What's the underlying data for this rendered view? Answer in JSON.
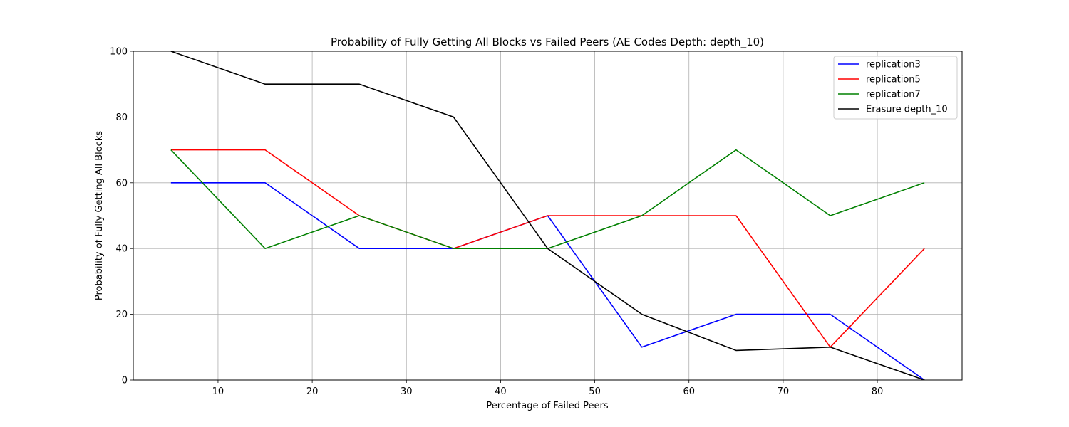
{
  "chart_data": {
    "type": "line",
    "title": "Probability of Fully Getting All Blocks vs Failed Peers (AE Codes Depth: depth_10)",
    "xlabel": "Percentage of Failed Peers",
    "ylabel": "Probability of Fully Getting All Blocks",
    "xlim": [
      1,
      89
    ],
    "ylim": [
      0,
      100
    ],
    "xticks": [
      10,
      20,
      30,
      40,
      50,
      60,
      70,
      80
    ],
    "yticks": [
      0,
      20,
      40,
      60,
      80,
      100
    ],
    "grid": true,
    "legend_position": "top-right",
    "x": [
      5,
      15,
      25,
      35,
      45,
      55,
      65,
      75,
      85
    ],
    "series": [
      {
        "name": "replication3",
        "color": "#0000ff",
        "values": [
          60,
          60,
          40,
          40,
          50,
          10,
          20,
          20,
          0
        ]
      },
      {
        "name": "replication5",
        "color": "#ff0000",
        "values": [
          70,
          70,
          50,
          40,
          50,
          50,
          50,
          10,
          40
        ]
      },
      {
        "name": "replication7",
        "color": "#008000",
        "values": [
          70,
          40,
          50,
          40,
          40,
          50,
          70,
          50,
          60
        ]
      },
      {
        "name": "Erasure depth_10",
        "color": "#000000",
        "values": [
          100,
          90,
          90,
          80,
          40,
          20,
          9,
          10,
          0
        ]
      }
    ]
  }
}
